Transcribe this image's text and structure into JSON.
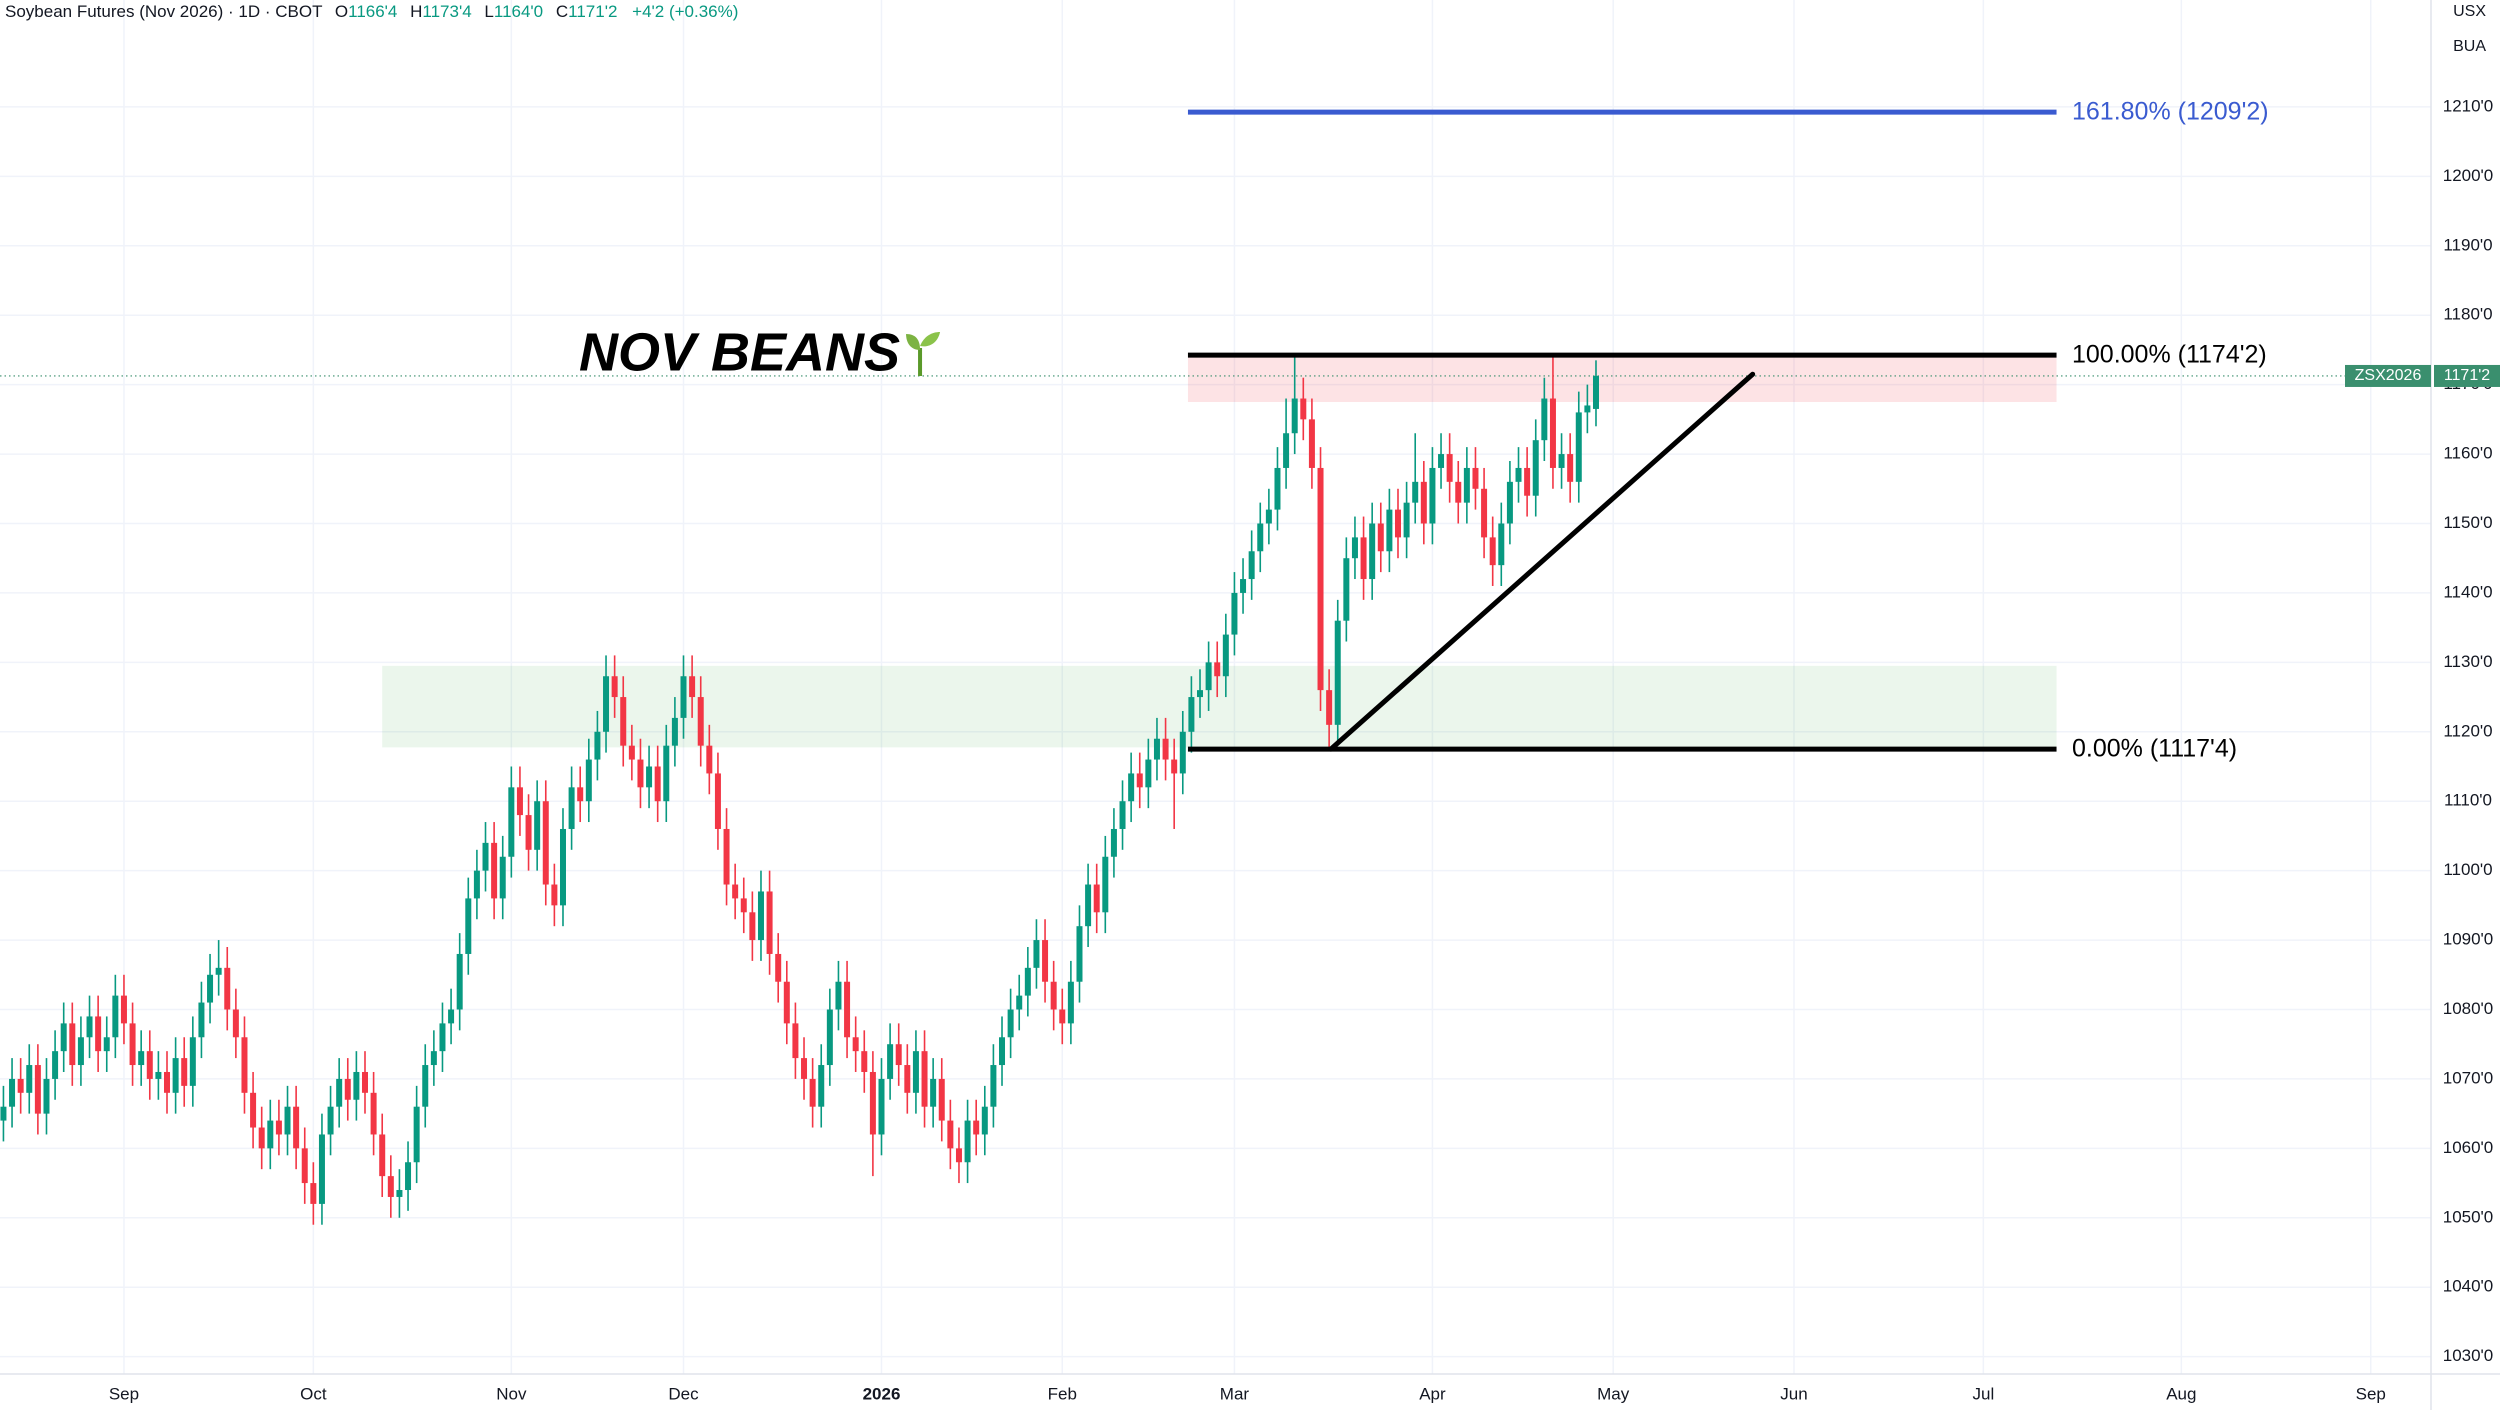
{
  "header": {
    "symbol": "Soybean Futures (Nov 2026) · 1D · CBOT",
    "legend": [
      {
        "key": "O",
        "value": "1166'4"
      },
      {
        "key": "H",
        "value": "1173'4"
      },
      {
        "key": "L",
        "value": "1164'0"
      },
      {
        "key": "C",
        "value": "1171'2"
      }
    ],
    "change": "+4'2 (+0.36%)",
    "currency": "USX",
    "unit": "BUA"
  },
  "chart_data": {
    "type": "candlestick",
    "title": "NOV BEANS",
    "up_color": "#089981",
    "down_color": "#f23645",
    "grid": true,
    "xlim": [
      -0.4,
      282
    ],
    "ylim": [
      1027.5,
      1225.4
    ],
    "xticks": [
      {
        "value": 14,
        "label": "Sep"
      },
      {
        "value": 36,
        "label": "Oct"
      },
      {
        "value": 59,
        "label": "Nov"
      },
      {
        "value": 79,
        "label": "Dec"
      },
      {
        "value": 102,
        "label": "2026"
      },
      {
        "value": 123,
        "label": "Feb"
      },
      {
        "value": 143,
        "label": "Mar"
      },
      {
        "value": 166,
        "label": "Apr"
      },
      {
        "value": 187,
        "label": "May"
      },
      {
        "value": 208,
        "label": "Jun"
      },
      {
        "value": 230,
        "label": "Jul"
      },
      {
        "value": 253,
        "label": "Aug"
      },
      {
        "value": 275,
        "label": "Sep"
      }
    ],
    "yticks": [
      {
        "value": 1030,
        "label": "1030'0"
      },
      {
        "value": 1040,
        "label": "1040'0"
      },
      {
        "value": 1050,
        "label": "1050'0"
      },
      {
        "value": 1060,
        "label": "1060'0"
      },
      {
        "value": 1070,
        "label": "1070'0"
      },
      {
        "value": 1080,
        "label": "1080'0"
      },
      {
        "value": 1090,
        "label": "1090'0"
      },
      {
        "value": 1100,
        "label": "1100'0"
      },
      {
        "value": 1110,
        "label": "1110'0"
      },
      {
        "value": 1120,
        "label": "1120'0"
      },
      {
        "value": 1130,
        "label": "1130'0"
      },
      {
        "value": 1140,
        "label": "1140'0"
      },
      {
        "value": 1150,
        "label": "1150'0"
      },
      {
        "value": 1160,
        "label": "1160'0"
      },
      {
        "value": 1170,
        "label": "1170'0"
      },
      {
        "value": 1180,
        "label": "1180'0"
      },
      {
        "value": 1190,
        "label": "1190'0"
      },
      {
        "value": 1200,
        "label": "1200'0"
      },
      {
        "value": 1210,
        "label": "1210'0"
      }
    ],
    "open": [
      1064,
      1066,
      1070,
      1068,
      1072,
      1065,
      1070,
      1074,
      1078,
      1072,
      1076,
      1079,
      1074,
      1076,
      1082,
      1078,
      1072,
      1074,
      1070,
      1071,
      1068,
      1073,
      1069,
      1076,
      1081,
      1085,
      1086,
      1080,
      1076,
      1068,
      1063,
      1060,
      1064,
      1062,
      1066,
      1060,
      1055,
      1052,
      1062,
      1066,
      1070,
      1067,
      1071,
      1068,
      1062,
      1056,
      1053,
      1054,
      1058,
      1066,
      1072,
      1074,
      1078,
      1080,
      1088,
      1096,
      1100,
      1104,
      1096,
      1102,
      1112,
      1108,
      1103,
      1110,
      1098,
      1095,
      1106,
      1112,
      1110,
      1116,
      1120,
      1128,
      1125,
      1118,
      1116,
      1112,
      1115,
      1110,
      1118,
      1122,
      1128,
      1125,
      1118,
      1114,
      1106,
      1098,
      1096,
      1094,
      1090,
      1097,
      1088,
      1084,
      1078,
      1073,
      1070,
      1066,
      1072,
      1080,
      1084,
      1076,
      1074,
      1071,
      1062,
      1070,
      1075,
      1072,
      1068,
      1074,
      1066,
      1070,
      1064,
      1060,
      1058,
      1064,
      1062,
      1066,
      1072,
      1076,
      1080,
      1082,
      1086,
      1090,
      1084,
      1080,
      1078,
      1084,
      1092,
      1098,
      1094,
      1102,
      1106,
      1110,
      1114,
      1112,
      1116,
      1119,
      1116,
      1114,
      1120,
      1125,
      1126,
      1130,
      1128,
      1134,
      1140,
      1142,
      1146,
      1150,
      1152,
      1158,
      1163,
      1168,
      1165,
      1158,
      1126,
      1121,
      1136,
      1145,
      1148,
      1142,
      1150,
      1146,
      1152,
      1148,
      1153,
      1156,
      1150,
      1158,
      1160,
      1156,
      1153,
      1158,
      1155,
      1148,
      1144,
      1150,
      1156,
      1158,
      1154,
      1162,
      1168,
      1158,
      1160,
      1156,
      1166,
      1166.5
    ],
    "high": [
      1069,
      1073,
      1073,
      1075,
      1075,
      1073,
      1077,
      1081,
      1081,
      1079,
      1082,
      1082,
      1079,
      1085,
      1085,
      1081,
      1077,
      1077,
      1074,
      1074,
      1076,
      1076,
      1079,
      1084,
      1088,
      1090,
      1089,
      1083,
      1079,
      1071,
      1066,
      1067,
      1067,
      1069,
      1069,
      1063,
      1058,
      1065,
      1069,
      1073,
      1073,
      1074,
      1074,
      1071,
      1065,
      1059,
      1057,
      1061,
      1069,
      1075,
      1077,
      1081,
      1083,
      1091,
      1099,
      1103,
      1107,
      1107,
      1105,
      1115,
      1115,
      1111,
      1113,
      1113,
      1101,
      1109,
      1115,
      1115,
      1119,
      1123,
      1131,
      1131,
      1128,
      1121,
      1119,
      1118,
      1118,
      1121,
      1125,
      1131,
      1131,
      1128,
      1121,
      1117,
      1109,
      1101,
      1099,
      1097,
      1100,
      1100,
      1091,
      1087,
      1081,
      1076,
      1073,
      1075,
      1083,
      1087,
      1087,
      1079,
      1077,
      1074,
      1073,
      1078,
      1078,
      1075,
      1077,
      1077,
      1073,
      1073,
      1067,
      1063,
      1067,
      1067,
      1069,
      1075,
      1079,
      1083,
      1085,
      1089,
      1093,
      1093,
      1087,
      1083,
      1087,
      1095,
      1101,
      1101,
      1105,
      1109,
      1113,
      1117,
      1117,
      1119,
      1122,
      1122,
      1119,
      1123,
      1128,
      1129,
      1133,
      1133,
      1137,
      1143,
      1145,
      1149,
      1153,
      1155,
      1161,
      1168,
      1174.25,
      1171,
      1168,
      1161,
      1129,
      1139,
      1148,
      1151,
      1151,
      1153,
      1153,
      1155,
      1155,
      1156,
      1163,
      1159,
      1161,
      1163,
      1163,
      1159,
      1161,
      1161,
      1158,
      1151,
      1153,
      1159,
      1161,
      1161,
      1165,
      1171,
      1174.5,
      1163,
      1163,
      1169,
      1170,
      1173.5
    ],
    "low": [
      1061,
      1063,
      1065,
      1065,
      1062,
      1062,
      1067,
      1071,
      1069,
      1069,
      1073,
      1071,
      1071,
      1073,
      1075,
      1069,
      1069,
      1067,
      1067,
      1065,
      1065,
      1066,
      1066,
      1073,
      1078,
      1082,
      1077,
      1073,
      1065,
      1060,
      1057,
      1057,
      1059,
      1059,
      1057,
      1052,
      1049,
      1049,
      1059,
      1063,
      1064,
      1064,
      1065,
      1059,
      1053,
      1050,
      1050,
      1051,
      1055,
      1063,
      1069,
      1071,
      1075,
      1077,
      1085,
      1093,
      1097,
      1093,
      1093,
      1099,
      1105,
      1100,
      1100,
      1095,
      1092,
      1092,
      1103,
      1107,
      1107,
      1113,
      1117,
      1122,
      1115,
      1113,
      1109,
      1109,
      1107,
      1107,
      1115,
      1119,
      1122,
      1115,
      1111,
      1103,
      1095,
      1093,
      1091,
      1087,
      1087,
      1085,
      1081,
      1075,
      1070,
      1067,
      1063,
      1063,
      1069,
      1077,
      1073,
      1071,
      1068,
      1056,
      1059,
      1067,
      1069,
      1065,
      1065,
      1063,
      1063,
      1061,
      1057,
      1055,
      1055,
      1059,
      1059,
      1063,
      1069,
      1073,
      1077,
      1079,
      1083,
      1081,
      1077,
      1075,
      1075,
      1081,
      1089,
      1091,
      1091,
      1099,
      1103,
      1107,
      1109,
      1109,
      1113,
      1113,
      1106,
      1111,
      1117,
      1122,
      1123,
      1125,
      1125,
      1131,
      1137,
      1139,
      1143,
      1147,
      1149,
      1155,
      1160,
      1162,
      1155,
      1123,
      1117.5,
      1118,
      1133,
      1142,
      1139,
      1139,
      1143,
      1143,
      1145,
      1145,
      1150,
      1147,
      1147,
      1155,
      1153,
      1150,
      1150,
      1152,
      1145,
      1141,
      1141,
      1147,
      1153,
      1151,
      1151,
      1159,
      1155,
      1155,
      1153,
      1153,
      1163,
      1164
    ],
    "close": [
      1066,
      1070,
      1068,
      1072,
      1065,
      1070,
      1074,
      1078,
      1072,
      1076,
      1079,
      1074,
      1076,
      1082,
      1078,
      1072,
      1074,
      1070,
      1071,
      1068,
      1073,
      1069,
      1076,
      1081,
      1085,
      1086,
      1080,
      1076,
      1068,
      1063,
      1060,
      1064,
      1062,
      1066,
      1060,
      1055,
      1052,
      1062,
      1066,
      1070,
      1067,
      1071,
      1068,
      1062,
      1056,
      1053,
      1054,
      1058,
      1066,
      1072,
      1074,
      1078,
      1080,
      1088,
      1096,
      1100,
      1104,
      1096,
      1102,
      1112,
      1108,
      1103,
      1110,
      1098,
      1095,
      1106,
      1112,
      1110,
      1116,
      1120,
      1128,
      1125,
      1118,
      1116,
      1112,
      1115,
      1110,
      1118,
      1122,
      1128,
      1125,
      1118,
      1114,
      1106,
      1098,
      1096,
      1094,
      1090,
      1097,
      1088,
      1084,
      1078,
      1073,
      1070,
      1066,
      1072,
      1080,
      1084,
      1076,
      1074,
      1071,
      1062,
      1070,
      1075,
      1072,
      1068,
      1074,
      1066,
      1070,
      1064,
      1060,
      1058,
      1064,
      1062,
      1066,
      1072,
      1076,
      1080,
      1082,
      1086,
      1090,
      1084,
      1080,
      1078,
      1084,
      1092,
      1098,
      1094,
      1102,
      1106,
      1110,
      1114,
      1112,
      1116,
      1119,
      1116,
      1114,
      1120,
      1125,
      1126,
      1130,
      1128,
      1134,
      1140,
      1142,
      1146,
      1150,
      1152,
      1158,
      1163,
      1168,
      1165,
      1158,
      1126,
      1121,
      1136,
      1145,
      1148,
      1142,
      1150,
      1146,
      1152,
      1148,
      1153,
      1156,
      1150,
      1158,
      1160,
      1156,
      1153,
      1158,
      1155,
      1148,
      1144,
      1150,
      1156,
      1158,
      1154,
      1162,
      1168,
      1158,
      1160,
      1156,
      1166,
      1167,
      1171.25
    ],
    "zones": [
      {
        "low": 1167.5,
        "high": 1174.25,
        "color": "rgba(242,54,69,0.14)"
      },
      {
        "low": 1117.75,
        "high": 1129.5,
        "color": "rgba(76,175,80,0.11)"
      }
    ],
    "fib_levels": [
      {
        "value": 1209.25,
        "label": "161.80% (1209'2)",
        "color": "#3a5bd0"
      },
      {
        "value": 1174.25,
        "label": "100.00% (1174'2)",
        "color": "#000000"
      },
      {
        "value": 1117.5,
        "label": "0.00% (1117'4)",
        "color": "#000000"
      }
    ],
    "trendline": {
      "from": 1117.5,
      "to": 1171.5,
      "color": "#000000"
    },
    "last_price": {
      "value": 1171.25,
      "label": "1171'2",
      "symbol": "ZSX2026",
      "color": "#3a8f6e"
    }
  }
}
